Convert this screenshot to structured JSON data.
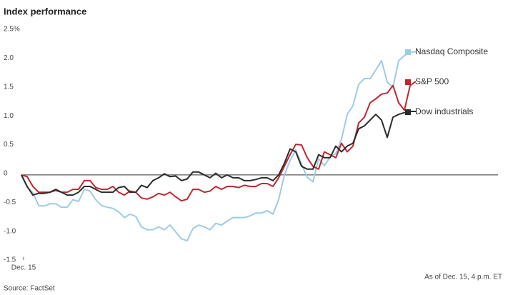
{
  "chart_data": {
    "type": "line",
    "title": "Index performance",
    "categories": [
      "Dec. 15",
      null,
      null,
      null,
      null,
      null,
      null,
      null,
      null,
      null,
      null,
      null,
      null,
      null,
      null,
      null,
      null,
      null,
      null,
      null,
      null,
      null,
      null,
      null,
      null,
      null,
      null,
      null,
      null,
      null,
      null,
      null,
      null,
      null,
      null,
      null,
      null,
      null,
      null,
      null,
      null,
      null,
      null,
      null,
      null,
      null,
      null,
      null,
      null,
      null,
      null,
      null,
      null,
      null,
      null,
      null,
      null,
      null,
      null,
      null,
      null,
      null,
      null,
      null,
      null,
      null,
      null,
      null,
      null,
      null
    ],
    "series": [
      {
        "name": "Nasdaq Composite",
        "color": "#9ccbe8",
        "values": [
          0,
          -0.21,
          -0.31,
          -0.53,
          -0.54,
          -0.5,
          -0.5,
          -0.56,
          -0.56,
          -0.43,
          -0.46,
          -0.25,
          -0.28,
          -0.43,
          -0.53,
          -0.56,
          -0.58,
          -0.64,
          -0.74,
          -0.68,
          -0.72,
          -0.9,
          -0.95,
          -0.95,
          -0.9,
          -0.95,
          -0.87,
          -0.99,
          -1.11,
          -1.14,
          -0.93,
          -0.87,
          -0.9,
          -0.95,
          -0.84,
          -0.87,
          -0.8,
          -0.74,
          -0.74,
          -0.74,
          -0.71,
          -0.66,
          -0.66,
          -0.62,
          -0.68,
          -0.43,
          0,
          0.25,
          0.43,
          0.19,
          -0.04,
          -0.12,
          0.28,
          0.16,
          0.31,
          0.37,
          0.62,
          1.05,
          1.2,
          1.57,
          1.67,
          1.67,
          1.82,
          1.98,
          1.61,
          1.52,
          1.98,
          2.07,
          2.12,
          2.14
        ]
      },
      {
        "name": "S&P 500",
        "color": "#c0272d",
        "values": [
          0,
          -0.03,
          -0.2,
          -0.3,
          -0.3,
          -0.3,
          -0.27,
          -0.3,
          -0.3,
          -0.25,
          -0.25,
          -0.1,
          -0.1,
          -0.22,
          -0.25,
          -0.25,
          -0.2,
          -0.3,
          -0.35,
          -0.28,
          -0.3,
          -0.4,
          -0.42,
          -0.38,
          -0.32,
          -0.35,
          -0.3,
          -0.38,
          -0.45,
          -0.42,
          -0.25,
          -0.25,
          -0.3,
          -0.28,
          -0.2,
          -0.25,
          -0.2,
          -0.2,
          -0.22,
          -0.18,
          -0.2,
          -0.2,
          -0.15,
          -0.15,
          -0.2,
          -0.05,
          0.15,
          0.35,
          0.53,
          0.52,
          0.3,
          0.15,
          0.1,
          0.4,
          0.35,
          0.3,
          0.55,
          0.4,
          0.5,
          0.9,
          1.0,
          1.25,
          1.32,
          1.4,
          1.42,
          1.55,
          1.25,
          1.12,
          1.55,
          1.62
        ]
      },
      {
        "name": "Dow industrials",
        "color": "#2b2b2b",
        "values": [
          0,
          -0.2,
          -0.35,
          -0.32,
          -0.32,
          -0.3,
          -0.25,
          -0.3,
          -0.35,
          -0.35,
          -0.3,
          -0.2,
          -0.2,
          -0.25,
          -0.3,
          -0.3,
          -0.3,
          -0.22,
          -0.2,
          -0.3,
          -0.3,
          -0.18,
          -0.22,
          -0.1,
          -0.05,
          0.02,
          -0.03,
          -0.02,
          -0.1,
          -0.07,
          0.05,
          0.05,
          0,
          -0.05,
          0.03,
          -0.05,
          0,
          -0.05,
          -0.05,
          -0.1,
          -0.1,
          -0.08,
          -0.05,
          -0.05,
          -0.1,
          0,
          0.2,
          0.45,
          0.4,
          0.15,
          0.1,
          0.1,
          0.35,
          0.3,
          0.3,
          0.5,
          0.4,
          0.5,
          0.55,
          0.8,
          0.85,
          0.95,
          1.05,
          0.95,
          0.65,
          1.0,
          1.05,
          1.08,
          1.1,
          1.1
        ]
      }
    ],
    "ylim": [
      -1.5,
      2.5
    ],
    "yticks": [
      {
        "value": -1.5,
        "label": "-1.5"
      },
      {
        "value": -1,
        "label": "-1.0"
      },
      -0.5,
      0,
      0.5,
      {
        "value": 1,
        "label": "1.0"
      },
      1.5,
      {
        "value": 2,
        "label": "2.0"
      },
      {
        "value": 2.5,
        "label": "2.5%"
      }
    ],
    "annotation": "As of Dec. 15, 4 p.m. ET",
    "source": "Source: FactSet",
    "legend": "right"
  }
}
